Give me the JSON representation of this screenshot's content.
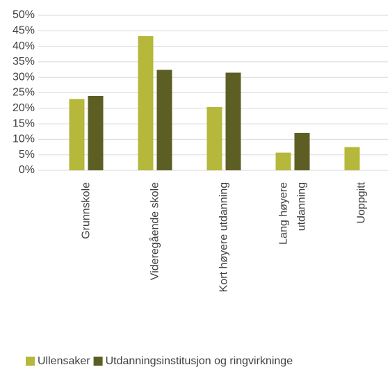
{
  "chart_data": {
    "type": "bar",
    "categories": [
      "Grunnskole",
      "Videregående skole",
      "Kort høyere utdanning",
      "Lang høyere\nutdanning",
      "Uoppgitt"
    ],
    "series": [
      {
        "name": "Ullensaker",
        "color": "#b5b83a",
        "values": [
          23,
          43.3,
          20.4,
          5.7,
          7.5
        ]
      },
      {
        "name": "Utdanningsinstitusjon og ringvirkninge",
        "color": "#5c5e24",
        "values": [
          24,
          32.4,
          31.5,
          12.1,
          null
        ]
      }
    ],
    "ylim": [
      0,
      50
    ],
    "yticks": [
      {
        "value": 0,
        "label": "0%"
      },
      {
        "value": 5,
        "label": "5%"
      },
      {
        "value": 10,
        "label": "10%"
      },
      {
        "value": 15,
        "label": "15%"
      },
      {
        "value": 20,
        "label": "20%"
      },
      {
        "value": 25,
        "label": "25%"
      },
      {
        "value": 30,
        "label": "30%"
      },
      {
        "value": 35,
        "label": "35%"
      },
      {
        "value": 40,
        "label": "40%"
      },
      {
        "value": 45,
        "label": "45%"
      },
      {
        "value": 50,
        "label": "50%"
      }
    ],
    "grid": true,
    "legend": "bottom"
  }
}
